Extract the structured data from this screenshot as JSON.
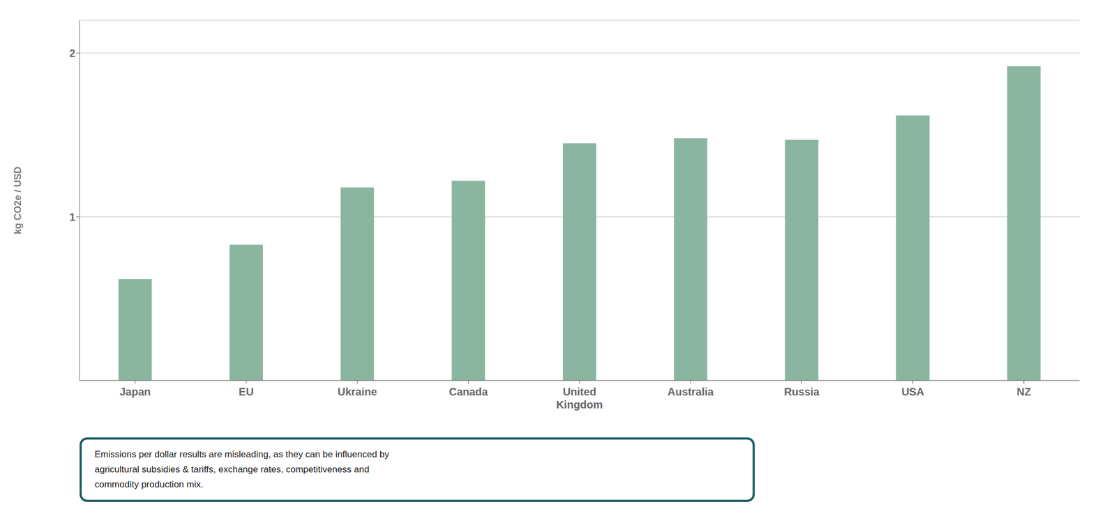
{
  "chart_data": {
    "type": "bar",
    "categories": [
      "Japan",
      "EU",
      "Ukraine",
      "Canada",
      "United\nKingdom",
      "Australia",
      "Russia",
      "USA",
      "NZ"
    ],
    "values": [
      0.62,
      0.83,
      1.18,
      1.22,
      1.45,
      1.48,
      1.47,
      1.62,
      1.92
    ],
    "color": "#8ab5a0",
    "ylim": [
      0,
      2.2
    ],
    "yticks": [
      1,
      2
    ],
    "ylabel": "kg CO2e / USD",
    "annotation": "Emissions per dollar results are misleading, as they can be influenced by\nagricultural subsidies & tariffs, exchange rates, competitiveness and\ncommodity production mix.",
    "grid": true
  }
}
